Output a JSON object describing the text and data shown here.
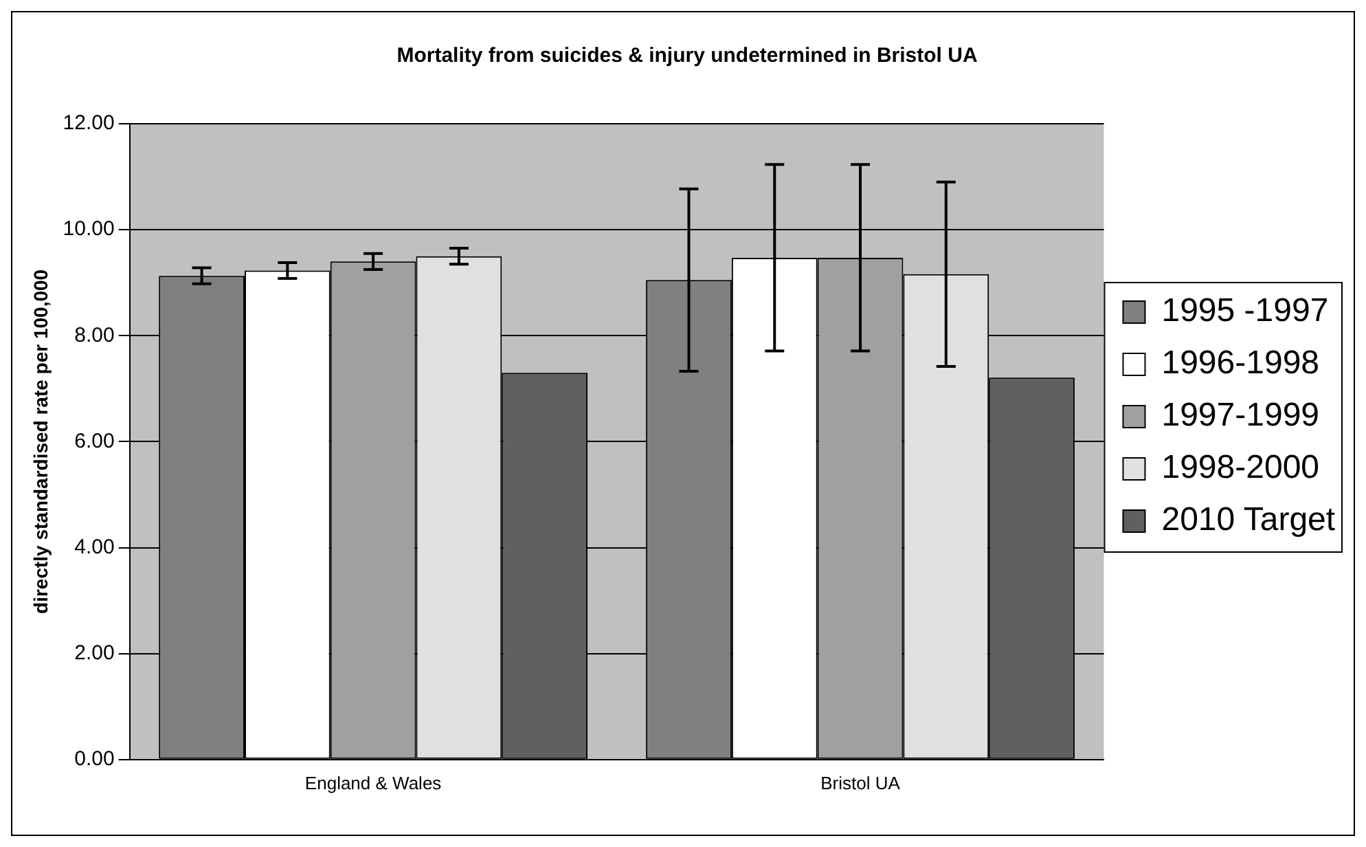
{
  "chart_data": {
    "type": "bar",
    "title": "Mortality from suicides & injury undetermined in Bristol UA",
    "ylabel": "directly standardised rate per 100,000",
    "categories": [
      "England & Wales",
      "Bristol UA"
    ],
    "series": [
      {
        "name": "1995 -1997",
        "color": "#808080",
        "values": [
          9.13,
          9.05
        ],
        "errors": [
          0.15,
          1.72
        ]
      },
      {
        "name": "1996-1998",
        "color": "#ffffff",
        "values": [
          9.23,
          9.47
        ],
        "errors": [
          0.15,
          1.76
        ]
      },
      {
        "name": "1997-1999",
        "color": "#a0a0a0",
        "values": [
          9.4,
          9.47
        ],
        "errors": [
          0.15,
          1.76
        ]
      },
      {
        "name": "1998-2000",
        "color": "#e0e0e0",
        "values": [
          9.5,
          9.16
        ],
        "errors": [
          0.15,
          1.74
        ]
      },
      {
        "name": "2010 Target",
        "color": "#606060",
        "values": [
          7.3,
          7.21
        ]
      }
    ],
    "ylim": [
      0,
      12
    ],
    "yticks": [
      {
        "value": 0,
        "label": "0.00"
      },
      {
        "value": 2,
        "label": "2.00"
      },
      {
        "value": 4,
        "label": "4.00"
      },
      {
        "value": 6,
        "label": "6.00"
      },
      {
        "value": 8,
        "label": "8.00"
      },
      {
        "value": 10,
        "label": "10.00"
      },
      {
        "value": 12,
        "label": "12.00"
      }
    ],
    "grid": "y",
    "legend": "right"
  }
}
